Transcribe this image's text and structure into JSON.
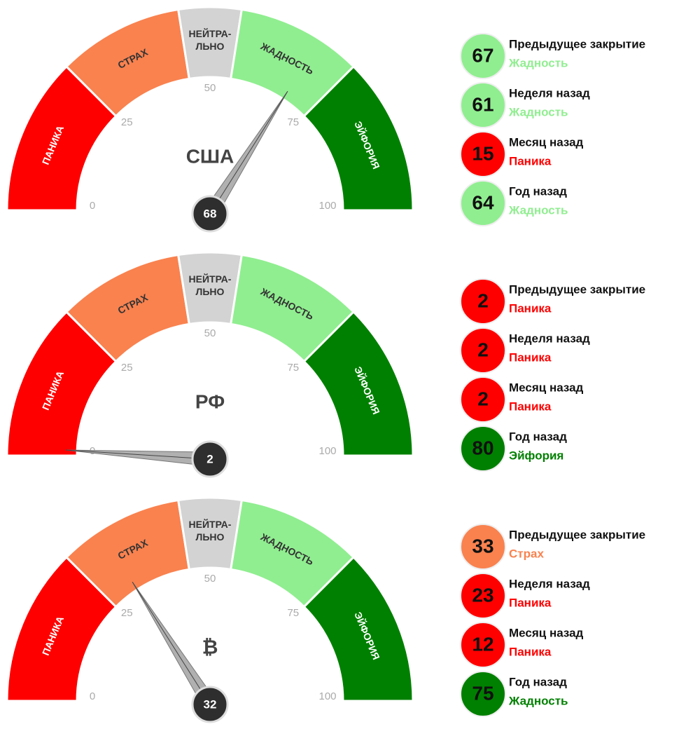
{
  "chart_data": [
    {
      "type": "gauge",
      "label": "США",
      "value": 68,
      "range": [
        0,
        100
      ],
      "ticks": [
        0,
        25,
        50,
        75,
        100
      ],
      "zones": [
        {
          "lines": [
            "ПАНИКА"
          ],
          "range": [
            0,
            25
          ],
          "color": "#ff0000",
          "label_color": "#ffffff"
        },
        {
          "lines": [
            "СТРАХ"
          ],
          "range": [
            25,
            45
          ],
          "color": "#f9824f",
          "label_color": "#333333"
        },
        {
          "lines": [
            "НЕЙТРА-",
            "ЛЬНО"
          ],
          "range": [
            45,
            55
          ],
          "color": "#d3d3d3",
          "label_color": "#333333"
        },
        {
          "lines": [
            "ЖАДНОСТЬ"
          ],
          "range": [
            55,
            75
          ],
          "color": "#90ee90",
          "label_color": "#333333"
        },
        {
          "lines": [
            "ЭЙФОРИЯ"
          ],
          "range": [
            75,
            100
          ],
          "color": "#008000",
          "label_color": "#ffffff"
        }
      ],
      "history": [
        {
          "label": "Предыдущее закрытие",
          "value": 67,
          "status": "Жадность"
        },
        {
          "label": "Неделя назад",
          "value": 61,
          "status": "Жадность"
        },
        {
          "label": "Месяц назад",
          "value": 15,
          "status": "Паника"
        },
        {
          "label": "Год назад",
          "value": 64,
          "status": "Жадность"
        }
      ]
    },
    {
      "type": "gauge",
      "label": "РФ",
      "value": 2,
      "range": [
        0,
        100
      ],
      "ticks": [
        0,
        25,
        50,
        75,
        100
      ],
      "zones": [
        {
          "lines": [
            "ПАНИКА"
          ],
          "range": [
            0,
            25
          ],
          "color": "#ff0000",
          "label_color": "#ffffff"
        },
        {
          "lines": [
            "СТРАХ"
          ],
          "range": [
            25,
            45
          ],
          "color": "#f9824f",
          "label_color": "#333333"
        },
        {
          "lines": [
            "НЕЙТРА-",
            "ЛЬНО"
          ],
          "range": [
            45,
            55
          ],
          "color": "#d3d3d3",
          "label_color": "#333333"
        },
        {
          "lines": [
            "ЖАДНОСТЬ"
          ],
          "range": [
            55,
            75
          ],
          "color": "#90ee90",
          "label_color": "#333333"
        },
        {
          "lines": [
            "ЭЙФОРИЯ"
          ],
          "range": [
            75,
            100
          ],
          "color": "#008000",
          "label_color": "#ffffff"
        }
      ],
      "history": [
        {
          "label": "Предыдущее закрытие",
          "value": 2,
          "status": "Паника"
        },
        {
          "label": "Неделя назад",
          "value": 2,
          "status": "Паника"
        },
        {
          "label": "Месяц назад",
          "value": 2,
          "status": "Паника"
        },
        {
          "label": "Год назад",
          "value": 80,
          "status": "Эйфория"
        }
      ]
    },
    {
      "type": "gauge",
      "label": "₿",
      "value": 32,
      "range": [
        0,
        100
      ],
      "ticks": [
        0,
        25,
        50,
        75,
        100
      ],
      "zones": [
        {
          "lines": [
            "ПАНИКА"
          ],
          "range": [
            0,
            25
          ],
          "color": "#ff0000",
          "label_color": "#ffffff"
        },
        {
          "lines": [
            "СТРАХ"
          ],
          "range": [
            25,
            45
          ],
          "color": "#f9824f",
          "label_color": "#333333"
        },
        {
          "lines": [
            "НЕЙТРА-",
            "ЛЬНО"
          ],
          "range": [
            45,
            55
          ],
          "color": "#d3d3d3",
          "label_color": "#333333"
        },
        {
          "lines": [
            "ЖАДНОСТЬ"
          ],
          "range": [
            55,
            75
          ],
          "color": "#90ee90",
          "label_color": "#333333"
        },
        {
          "lines": [
            "ЭЙФОРИЯ"
          ],
          "range": [
            75,
            100
          ],
          "color": "#008000",
          "label_color": "#ffffff"
        }
      ],
      "history": [
        {
          "label": "Предыдущее закрытие",
          "value": 33,
          "status": "Страх"
        },
        {
          "label": "Неделя назад",
          "value": 23,
          "status": "Паника"
        },
        {
          "label": "Месяц назад",
          "value": 12,
          "status": "Паника"
        },
        {
          "label": "Год назад",
          "value": 75,
          "status": "Жадность"
        }
      ]
    }
  ]
}
